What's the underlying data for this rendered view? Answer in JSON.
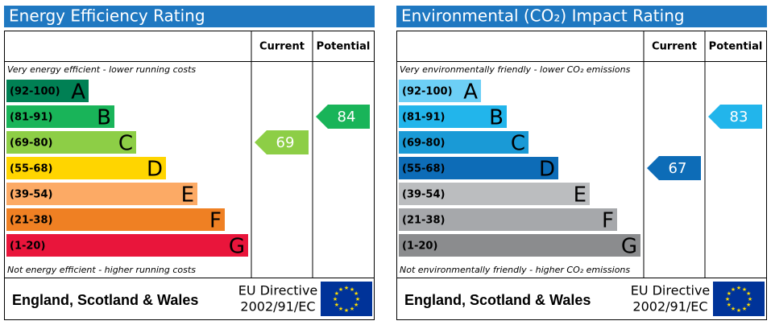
{
  "chart_data": [
    {
      "type": "epc",
      "title": "Energy Efficiency Rating",
      "columns": [
        "Current",
        "Potential"
      ],
      "top_note": "Very energy efficient - lower running costs",
      "bottom_note": "Not energy efficient - higher running costs",
      "bands": [
        {
          "range": "(92-100)",
          "letter": "A",
          "color": "#008054"
        },
        {
          "range": "(81-91)",
          "letter": "B",
          "color": "#19b459"
        },
        {
          "range": "(69-80)",
          "letter": "C",
          "color": "#8dce46"
        },
        {
          "range": "(55-68)",
          "letter": "D",
          "color": "#ffd500"
        },
        {
          "range": "(39-54)",
          "letter": "E",
          "color": "#fcaa65"
        },
        {
          "range": "(21-38)",
          "letter": "F",
          "color": "#ef8023"
        },
        {
          "range": "(1-20)",
          "letter": "G",
          "color": "#e9153b"
        }
      ],
      "current": 69,
      "potential": 84,
      "region": "England, Scotland & Wales",
      "directive": [
        "EU Directive",
        "2002/91/EC"
      ]
    },
    {
      "type": "epc",
      "title": "Environmental (CO₂) Impact Rating",
      "columns": [
        "Current",
        "Potential"
      ],
      "top_note": "Very environmentally friendly - lower CO₂ emissions",
      "bottom_note": "Not environmentally friendly - higher CO₂ emissions",
      "bands": [
        {
          "range": "(92-100)",
          "letter": "A",
          "color": "#6dcff6"
        },
        {
          "range": "(81-91)",
          "letter": "B",
          "color": "#22b5eb"
        },
        {
          "range": "(69-80)",
          "letter": "C",
          "color": "#1a9ad6"
        },
        {
          "range": "(55-68)",
          "letter": "D",
          "color": "#0d6cb7"
        },
        {
          "range": "(39-54)",
          "letter": "E",
          "color": "#bbbdbf"
        },
        {
          "range": "(21-38)",
          "letter": "F",
          "color": "#a6a8ab"
        },
        {
          "range": "(1-20)",
          "letter": "G",
          "color": "#8b8c8e"
        }
      ],
      "current": 67,
      "potential": 83,
      "region": "England, Scotland & Wales",
      "directive": [
        "EU Directive",
        "2002/91/EC"
      ]
    }
  ]
}
